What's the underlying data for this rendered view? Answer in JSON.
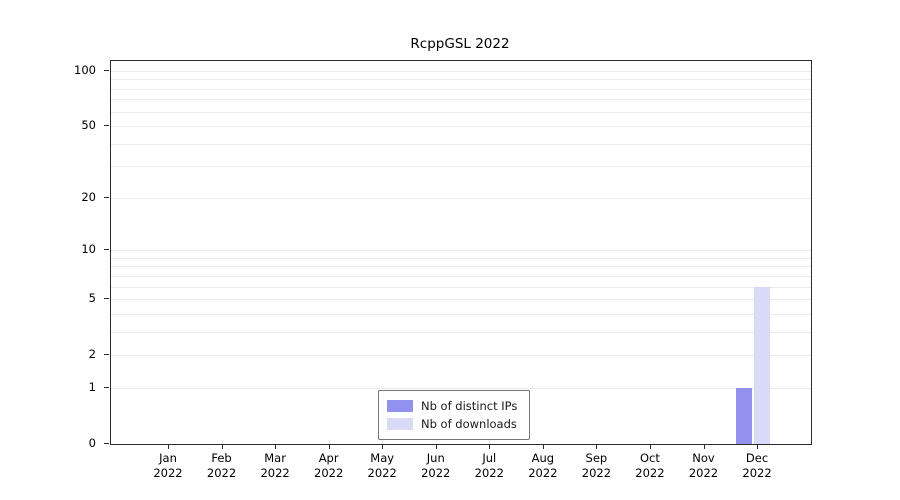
{
  "chart_data": {
    "type": "bar",
    "title": "RcppGSL 2022",
    "categories": [
      {
        "label": "Jan",
        "sub": "2022"
      },
      {
        "label": "Feb",
        "sub": "2022"
      },
      {
        "label": "Mar",
        "sub": "2022"
      },
      {
        "label": "Apr",
        "sub": "2022"
      },
      {
        "label": "May",
        "sub": "2022"
      },
      {
        "label": "Jun",
        "sub": "2022"
      },
      {
        "label": "Jul",
        "sub": "2022"
      },
      {
        "label": "Aug",
        "sub": "2022"
      },
      {
        "label": "Sep",
        "sub": "2022"
      },
      {
        "label": "Oct",
        "sub": "2022"
      },
      {
        "label": "Nov",
        "sub": "2022"
      },
      {
        "label": "Dec",
        "sub": "2022"
      }
    ],
    "series": [
      {
        "name": "Nb of distinct IPs",
        "color": "#9292ee",
        "values": [
          0,
          0,
          0,
          0,
          0,
          0,
          0,
          0,
          0,
          0,
          0,
          1
        ]
      },
      {
        "name": "Nb of downloads",
        "color": "#d9d9f8",
        "values": [
          0,
          0,
          0,
          0,
          0,
          0,
          0,
          0,
          0,
          0,
          0,
          6
        ]
      }
    ],
    "yticks": [
      0,
      1,
      2,
      5,
      10,
      20,
      50,
      100
    ],
    "minor_gridlines": [
      1,
      2,
      3,
      4,
      5,
      6,
      7,
      8,
      9,
      10,
      20,
      30,
      40,
      50,
      60,
      70,
      80,
      90,
      100
    ],
    "scale": "log1p",
    "ylim": [
      0,
      113
    ],
    "grid": "horizontal-minor",
    "legend_position": "bottom-center",
    "colors": {
      "axis": "#2b2b2b",
      "gridline": "#ebebeb",
      "background": "#ffffff"
    }
  }
}
